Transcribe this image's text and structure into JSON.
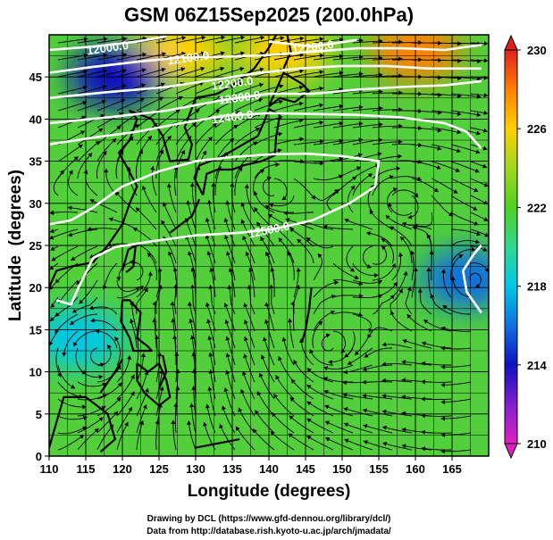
{
  "chart_data": {
    "type": "heatmap",
    "title": "GSM 06Z15Sep2025 (200.0hPa)",
    "xlabel": "Longitude (degrees)",
    "ylabel": "Latitude  (degrees)",
    "xlim": [
      110,
      170
    ],
    "ylim": [
      0,
      50
    ],
    "xticks": [
      "110",
      "115",
      "120",
      "125",
      "130",
      "135",
      "140",
      "145",
      "150",
      "155",
      "160",
      "165"
    ],
    "yticks": [
      "0",
      "5",
      "10",
      "15",
      "20",
      "25",
      "30",
      "35",
      "40",
      "45"
    ],
    "colorbar": {
      "range": [
        210,
        230
      ],
      "ticks": [
        "210",
        "214",
        "218",
        "222",
        "226",
        "230"
      ],
      "stops": [
        {
          "v": 210,
          "color": "#e020c0"
        },
        {
          "v": 212,
          "color": "#8020d0"
        },
        {
          "v": 214,
          "color": "#1010c0"
        },
        {
          "v": 216,
          "color": "#1070e0"
        },
        {
          "v": 218,
          "color": "#00c8e8"
        },
        {
          "v": 220,
          "color": "#30d890"
        },
        {
          "v": 222,
          "color": "#50d020"
        },
        {
          "v": 224,
          "color": "#a0d820"
        },
        {
          "v": 226,
          "color": "#ffd000"
        },
        {
          "v": 228,
          "color": "#ff8000"
        },
        {
          "v": 230,
          "color": "#e02020"
        }
      ]
    },
    "temperature_regions": [
      {
        "name": "warm-core-northeast",
        "lon": 160,
        "lat": 48,
        "value": 229
      },
      {
        "name": "warm-north-central",
        "lon": 128,
        "lat": 48,
        "value": 227
      },
      {
        "name": "warm-north",
        "lon": 142,
        "lat": 48,
        "value": 226
      },
      {
        "name": "cold-pool-northwest",
        "lon": 119,
        "lat": 45,
        "value": 215
      },
      {
        "name": "cool-east-20N",
        "lon": 167,
        "lat": 21,
        "value": 217
      },
      {
        "name": "cool-tropics-west",
        "lon": 114,
        "lat": 14,
        "value": 219
      }
    ],
    "contours": [
      {
        "value": "12500.0",
        "label_lon": 140,
        "label_lat": 26.8,
        "path": [
          [
            110,
            27.5
          ],
          [
            113,
            28
          ],
          [
            116,
            29.5
          ],
          [
            120,
            32
          ],
          [
            125,
            33.8
          ],
          [
            130,
            35
          ],
          [
            135,
            35.5
          ],
          [
            140,
            35.8
          ],
          [
            145,
            35.9
          ],
          [
            150,
            35.6
          ],
          [
            155,
            35
          ],
          [
            154.5,
            32
          ],
          [
            151,
            30
          ],
          [
            146,
            28
          ],
          [
            141,
            27
          ],
          [
            136,
            26.5
          ],
          [
            130,
            26.2
          ],
          [
            124,
            25.5
          ],
          [
            119,
            24.8
          ],
          [
            116,
            23.5
          ],
          [
            114,
            20
          ],
          [
            113,
            18
          ],
          [
            111,
            18.5
          ]
        ]
      },
      {
        "value": "12500.0",
        "label_lon": 0,
        "label_lat": 0,
        "path": [
          [
            169,
            17
          ],
          [
            167,
            19.5
          ],
          [
            166.5,
            22
          ],
          [
            168,
            24
          ],
          [
            169,
            25
          ]
        ]
      },
      {
        "value": "12400.0",
        "label_lon": 135,
        "label_lat": 40.2,
        "path": [
          [
            110,
            37
          ],
          [
            116,
            37.8
          ],
          [
            122,
            38.5
          ],
          [
            128,
            39.5
          ],
          [
            134,
            40.4
          ],
          [
            140,
            40.7
          ],
          [
            146,
            40.6
          ],
          [
            152,
            40.5
          ],
          [
            158,
            40.2
          ],
          [
            164,
            39.5
          ],
          [
            167,
            38.5
          ],
          [
            169,
            36.5
          ]
        ]
      },
      {
        "value": "12300.0",
        "label_lon": 136,
        "label_lat": 42.5,
        "path": [
          [
            110,
            39.5
          ],
          [
            118,
            40.2
          ],
          [
            126,
            41
          ],
          [
            134,
            42.3
          ],
          [
            140,
            43
          ],
          [
            146,
            43
          ],
          [
            152,
            43.5
          ],
          [
            158,
            43.8
          ],
          [
            164,
            44
          ],
          [
            169,
            44.5
          ]
        ]
      },
      {
        "value": "12200.0",
        "label_lon": 135,
        "label_lat": 44.2,
        "path": [
          [
            110,
            42.5
          ],
          [
            118,
            43.2
          ],
          [
            126,
            43.8
          ],
          [
            132,
            44.6
          ],
          [
            138,
            45.4
          ],
          [
            144,
            46
          ],
          [
            150,
            46.3
          ],
          [
            156,
            46.3
          ],
          [
            162,
            46
          ],
          [
            169,
            46
          ]
        ]
      },
      {
        "value": "12100.0",
        "label_lon": 129,
        "label_lat": 47.2,
        "path": [
          [
            110,
            45.5
          ],
          [
            116,
            46.2
          ],
          [
            122,
            46.8
          ],
          [
            128,
            47.3
          ],
          [
            134,
            47.4
          ],
          [
            140,
            47.6
          ],
          [
            146,
            48
          ],
          [
            152,
            48.4
          ],
          [
            158,
            48.4
          ],
          [
            164,
            48.2
          ],
          [
            169,
            48.8
          ]
        ]
      },
      {
        "value": "12200.0",
        "label_lon": 146,
        "label_lat": 48.5,
        "path": [
          [
            140,
            49.2
          ],
          [
            146,
            48.6
          ],
          [
            152,
            49.4
          ]
        ]
      },
      {
        "value": "12000.0",
        "label_lon": 118,
        "label_lat": 48.4,
        "path": [
          [
            110,
            48.2
          ],
          [
            116,
            48.6
          ],
          [
            122,
            49.2
          ],
          [
            126,
            49.8
          ]
        ]
      }
    ]
  },
  "credits": {
    "line1": "Drawing by DCL (https://www.gfd-dennou.org/library/dcl/)",
    "line2": "Data from http://database.rish.kyoto-u.ac.jp/arch/jmadata/"
  }
}
